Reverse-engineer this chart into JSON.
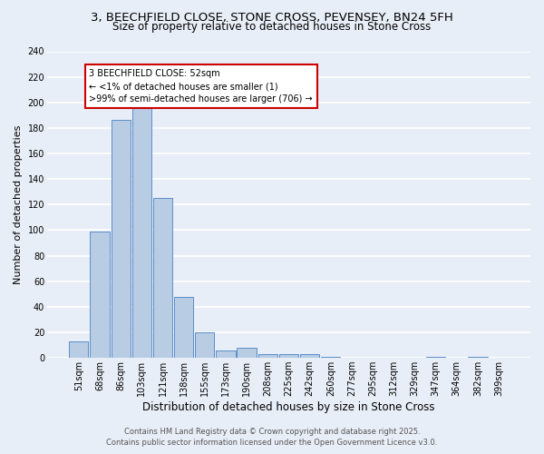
{
  "title": "3, BEECHFIELD CLOSE, STONE CROSS, PEVENSEY, BN24 5FH",
  "subtitle": "Size of property relative to detached houses in Stone Cross",
  "xlabel": "Distribution of detached houses by size in Stone Cross",
  "ylabel": "Number of detached properties",
  "categories": [
    "51sqm",
    "68sqm",
    "86sqm",
    "103sqm",
    "121sqm",
    "138sqm",
    "155sqm",
    "173sqm",
    "190sqm",
    "208sqm",
    "225sqm",
    "242sqm",
    "260sqm",
    "277sqm",
    "295sqm",
    "312sqm",
    "329sqm",
    "347sqm",
    "364sqm",
    "382sqm",
    "399sqm"
  ],
  "values": [
    13,
    99,
    186,
    200,
    125,
    48,
    20,
    6,
    8,
    3,
    3,
    3,
    1,
    0,
    0,
    0,
    0,
    1,
    0,
    1,
    0
  ],
  "bar_color": "#b8cce4",
  "bar_edge_color": "#5b8fc9",
  "annotation_text": "3 BEECHFIELD CLOSE: 52sqm\n← <1% of detached houses are smaller (1)\n>99% of semi-detached houses are larger (706) →",
  "annotation_box_color": "#ffffff",
  "annotation_box_edge": "#cc0000",
  "ylim": [
    0,
    240
  ],
  "yticks": [
    0,
    20,
    40,
    60,
    80,
    100,
    120,
    140,
    160,
    180,
    200,
    220,
    240
  ],
  "footer_line1": "Contains HM Land Registry data © Crown copyright and database right 2025.",
  "footer_line2": "Contains public sector information licensed under the Open Government Licence v3.0.",
  "bg_color": "#e8eef7",
  "title_fontsize": 9.5,
  "subtitle_fontsize": 8.5,
  "ylabel_fontsize": 8,
  "xlabel_fontsize": 8.5,
  "tick_fontsize": 7,
  "annotation_fontsize": 7,
  "footer_fontsize": 6
}
